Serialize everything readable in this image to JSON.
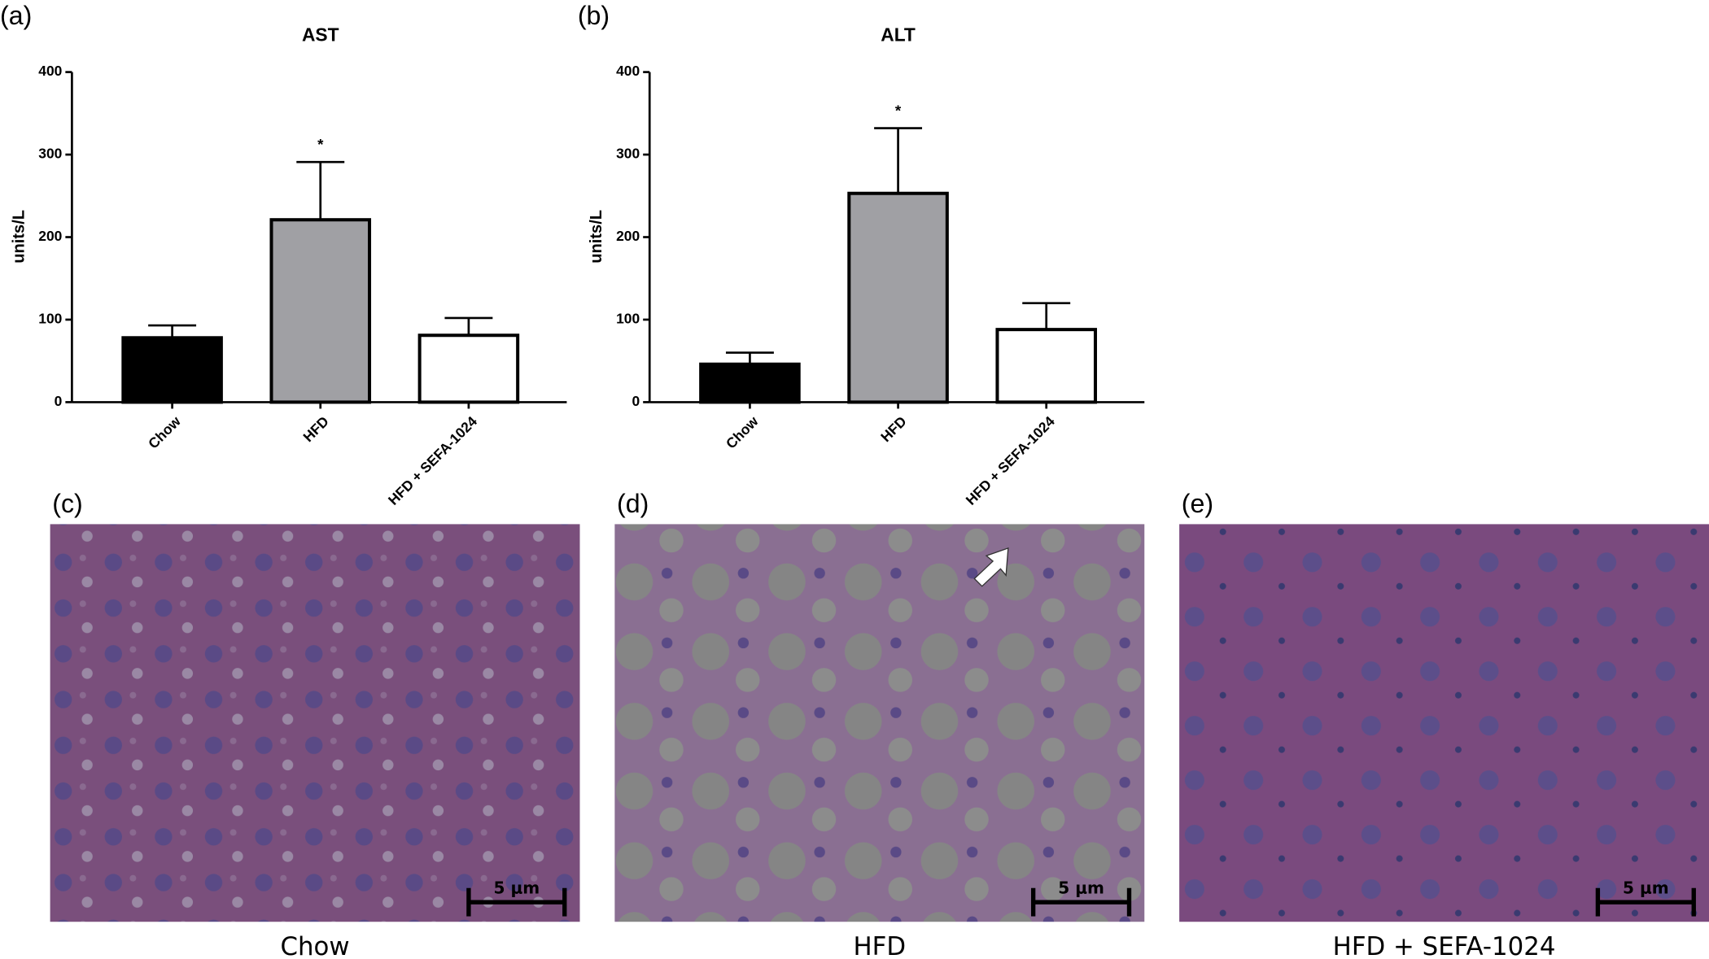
{
  "chart_data": [
    {
      "type": "bar",
      "panel_label": "(a)",
      "title": "AST",
      "y_label": "units/L",
      "categories": [
        "Chow",
        "HFD",
        "HFD + SEFA-1024"
      ],
      "values": [
        78,
        221,
        81
      ],
      "errors": [
        15,
        70,
        21
      ],
      "annotations": [
        null,
        "*",
        null
      ],
      "colors": [
        "#000000",
        "#a0a0a4",
        "#ffffff"
      ],
      "ylim": [
        0,
        400
      ],
      "yticks": [
        0,
        100,
        200,
        300,
        400
      ]
    },
    {
      "type": "bar",
      "panel_label": "(b)",
      "title": "ALT",
      "y_label": "units/L",
      "categories": [
        "Chow",
        "HFD",
        "HFD + SEFA-1024"
      ],
      "values": [
        46,
        253,
        88
      ],
      "errors": [
        14,
        79,
        32
      ],
      "annotations": [
        null,
        "*",
        null
      ],
      "colors": [
        "#000000",
        "#a0a0a4",
        "#ffffff"
      ],
      "ylim": [
        0,
        400
      ],
      "yticks": [
        0,
        100,
        200,
        300,
        400
      ]
    }
  ],
  "images": [
    {
      "panel_label": "(c)",
      "caption": "Chow",
      "scale_bar": "5 μm"
    },
    {
      "panel_label": "(d)",
      "caption": "HFD",
      "scale_bar": "5 μm"
    },
    {
      "panel_label": "(e)",
      "caption": "HFD + SEFA-1024",
      "scale_bar": "5 μm"
    }
  ]
}
